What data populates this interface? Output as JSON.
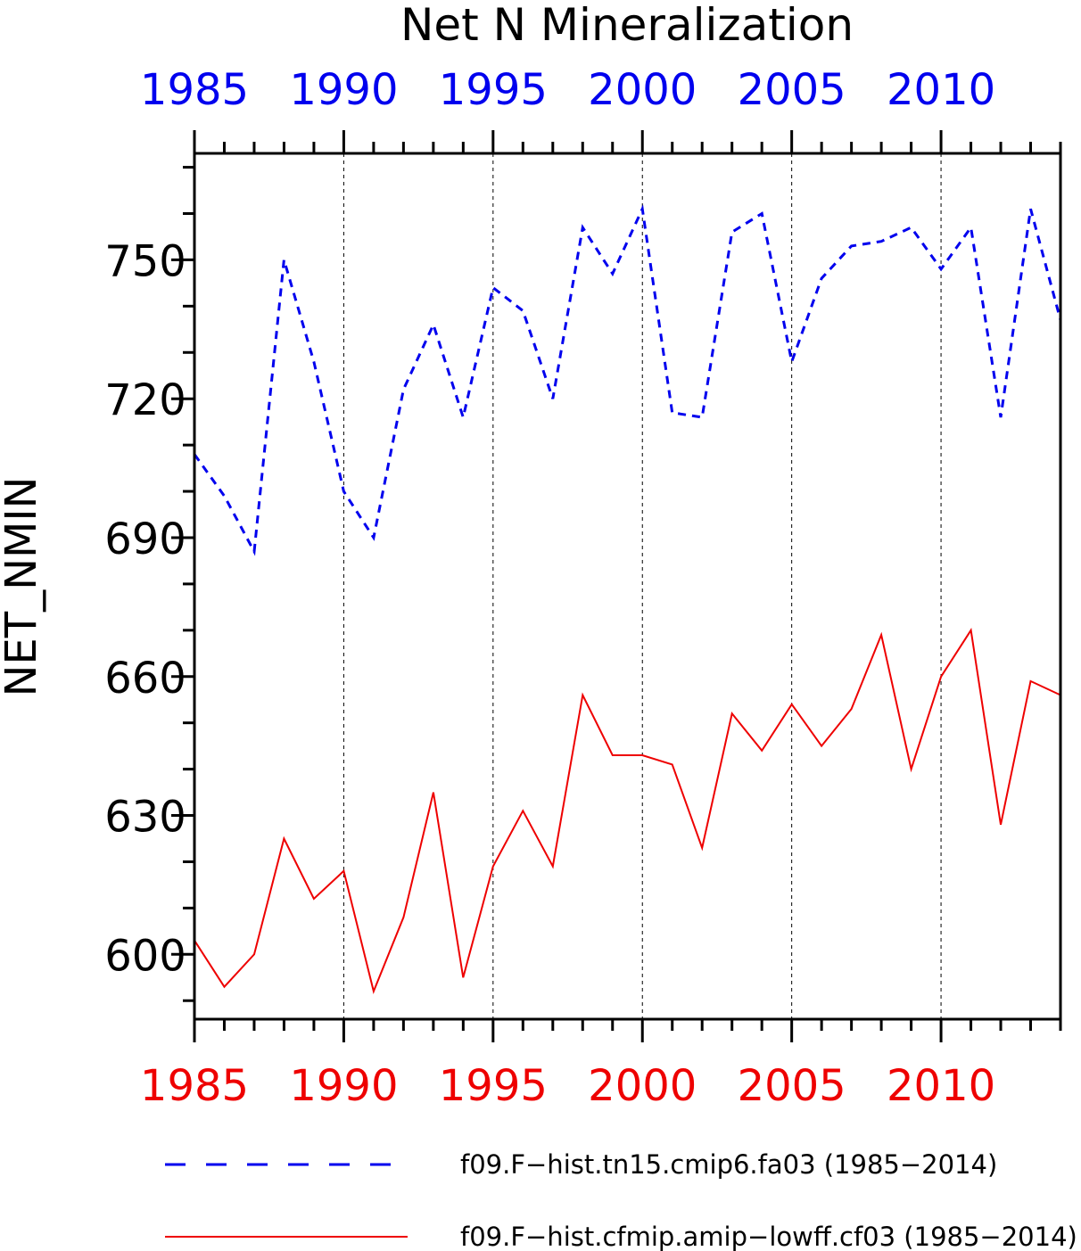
{
  "chart_data": {
    "type": "line",
    "title": "Net N Mineralization",
    "ylabel": "NET_NMIN",
    "xlabel": "",
    "xlim": [
      1985,
      2014
    ],
    "ylim": [
      586,
      773
    ],
    "yticks": [
      600,
      630,
      660,
      690,
      720,
      750
    ],
    "xticks": [
      1985,
      1990,
      1995,
      2000,
      2005,
      2010
    ],
    "grid": "vertical dashed at major x ticks",
    "legend_position": "bottom",
    "x": [
      1985,
      1986,
      1987,
      1988,
      1989,
      1990,
      1991,
      1992,
      1993,
      1994,
      1995,
      1996,
      1997,
      1998,
      1999,
      2000,
      2001,
      2002,
      2003,
      2004,
      2005,
      2006,
      2007,
      2008,
      2009,
      2010,
      2011,
      2012,
      2013,
      2014
    ],
    "series": [
      {
        "name": "f09.F−hist.tn15.cmip6.fa03 (1985−2014)",
        "color": "#0000ee",
        "dash": "dashed",
        "values": [
          708,
          699,
          687,
          750,
          728,
          700,
          690,
          722,
          736,
          716,
          744,
          739,
          720,
          757,
          747,
          761,
          717,
          716,
          756,
          760,
          728,
          746,
          753,
          754,
          757,
          748,
          757,
          716,
          761,
          737
        ]
      },
      {
        "name": "f09.F−hist.cfmip.amip−lowff.cf03 (1985−2014)",
        "color": "#ee0000",
        "dash": "solid",
        "values": [
          603,
          593,
          600,
          625,
          612,
          618,
          592,
          608,
          635,
          595,
          619,
          631,
          619,
          656,
          643,
          643,
          641,
          623,
          652,
          644,
          654,
          645,
          653,
          669,
          640,
          660,
          670,
          628,
          659,
          656
        ]
      }
    ]
  }
}
